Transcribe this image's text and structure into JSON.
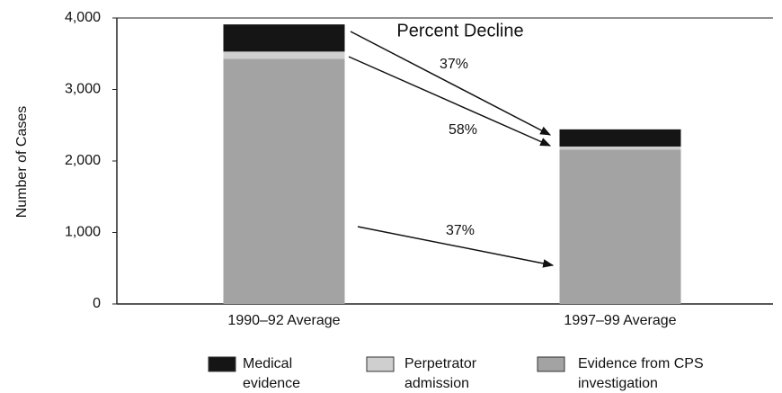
{
  "chart_data": {
    "type": "stacked_bar",
    "ylabel": "Number of Cases",
    "categories": [
      "1990–92 Average",
      "1997–99 Average"
    ],
    "series": [
      {
        "name": "Medical evidence",
        "color": "#151515",
        "values": [
          380,
          240
        ]
      },
      {
        "name": "Perpetrator admission",
        "color": "#cfcfcf",
        "values": [
          100,
          42
        ]
      },
      {
        "name": "Evidence from CPS investigation",
        "color": "#a3a3a3",
        "values": [
          3430,
          2160
        ]
      }
    ],
    "annotations": [
      "Percent Decline",
      "37%",
      "58%",
      "37%"
    ],
    "ylim": [
      0,
      4000
    ],
    "yticks": [
      0,
      {
        "value": 1000,
        "label": "1,000"
      },
      {
        "value": 2000,
        "label": "2,000"
      },
      {
        "value": 3000,
        "label": "3,000"
      },
      {
        "value": 4000,
        "label": "4,000"
      }
    ],
    "legend": "bottom"
  }
}
